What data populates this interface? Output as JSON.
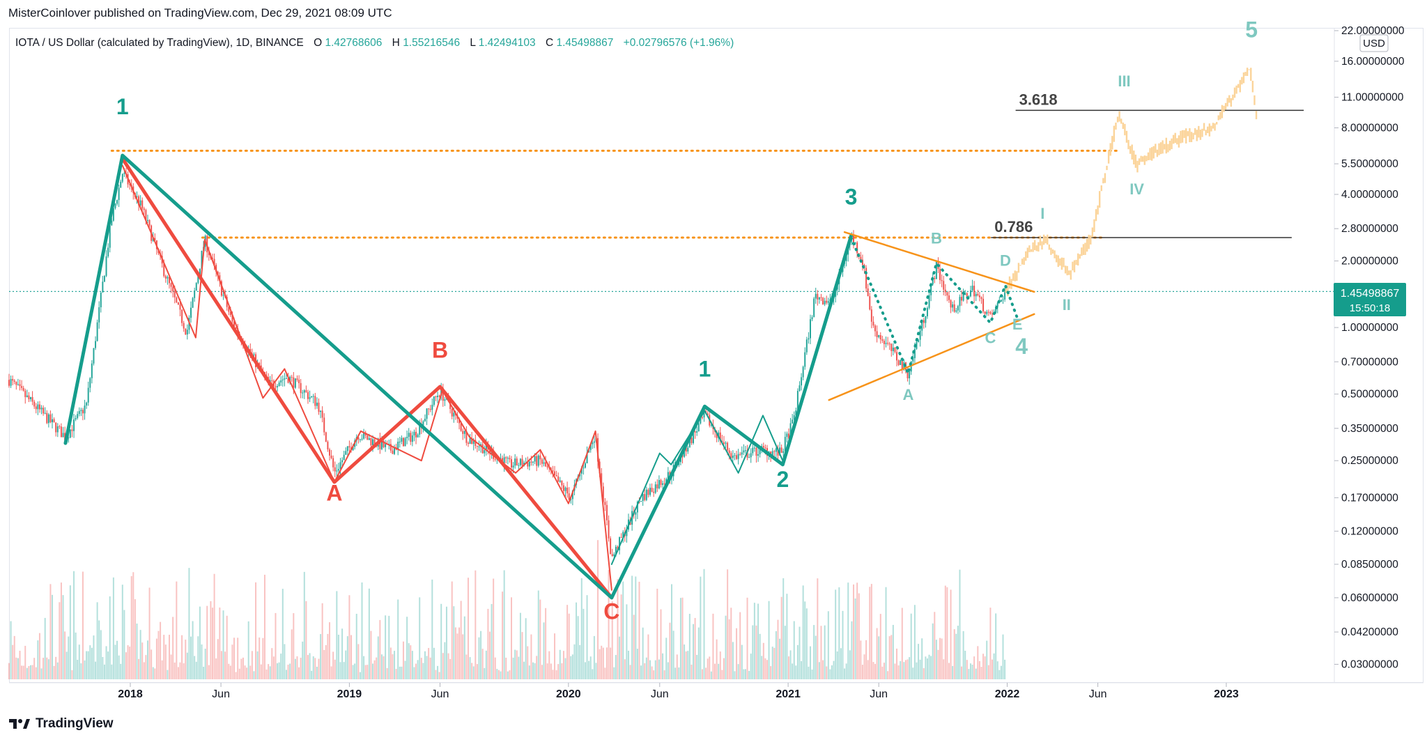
{
  "header": {
    "published_line": "MisterCoinlover published on TradingView.com, Dec 29, 2021 08:09 UTC"
  },
  "legend": {
    "symbol": "IOTA / US Dollar (calculated by TradingView), 1D, BINANCE",
    "o_label": "O",
    "o_value": "1.42768606",
    "h_label": "H",
    "h_value": "1.55216546",
    "l_label": "L",
    "l_value": "1.42494103",
    "c_label": "C",
    "c_value": "1.45498867",
    "change": "+0.02796576 (+1.96%)"
  },
  "price_axis": {
    "currency": "USD",
    "last_price": "1.45498867",
    "countdown": "15:50:18"
  },
  "footer": {
    "brand": "TradingView"
  },
  "colors": {
    "up": "#26a69a",
    "down": "#ef5350",
    "red_wave": "#ef4b3f",
    "green_wave": "#159d8c",
    "orange": "#f7931a",
    "projection": "#fbd49a",
    "label_teal": "#7fc8c0",
    "fib_line": "#333333"
  },
  "chart_data": {
    "type": "candlestick",
    "scale": "log",
    "ylim": [
      0.027,
      22
    ],
    "x_range": [
      "2017-06-13",
      "2023-06-30"
    ],
    "x_ticks": [
      {
        "date": "2018-01-01",
        "label": "2018",
        "bold": true
      },
      {
        "date": "2018-06-01",
        "label": "Jun",
        "bold": false
      },
      {
        "date": "2019-01-01",
        "label": "2019",
        "bold": true
      },
      {
        "date": "2019-06-01",
        "label": "Jun",
        "bold": false
      },
      {
        "date": "2020-01-01",
        "label": "2020",
        "bold": true
      },
      {
        "date": "2020-06-01",
        "label": "Jun",
        "bold": false
      },
      {
        "date": "2021-01-01",
        "label": "2021",
        "bold": true
      },
      {
        "date": "2021-06-01",
        "label": "Jun",
        "bold": false
      },
      {
        "date": "2022-01-01",
        "label": "2022",
        "bold": true
      },
      {
        "date": "2022-06-01",
        "label": "Jun",
        "bold": false
      },
      {
        "date": "2023-01-01",
        "label": "2023",
        "bold": true
      }
    ],
    "y_ticks": [
      {
        "value": 22,
        "label": "22.00000000"
      },
      {
        "value": 16,
        "label": "16.00000000"
      },
      {
        "value": 11,
        "label": "11.00000000"
      },
      {
        "value": 8,
        "label": "8.00000000"
      },
      {
        "value": 5.5,
        "label": "5.50000000"
      },
      {
        "value": 4,
        "label": "4.00000000"
      },
      {
        "value": 2.8,
        "label": "2.80000000"
      },
      {
        "value": 2,
        "label": "2.00000000"
      },
      {
        "value": 1,
        "label": "1.00000000"
      },
      {
        "value": 0.7,
        "label": "0.70000000"
      },
      {
        "value": 0.5,
        "label": "0.50000000"
      },
      {
        "value": 0.35,
        "label": "0.35000000"
      },
      {
        "value": 0.25,
        "label": "0.25000000"
      },
      {
        "value": 0.17,
        "label": "0.17000000"
      },
      {
        "value": 0.12,
        "label": "0.12000000"
      },
      {
        "value": 0.085,
        "label": "0.08500000"
      },
      {
        "value": 0.06,
        "label": "0.06000000"
      },
      {
        "value": 0.042,
        "label": "0.04200000"
      },
      {
        "value": 0.03,
        "label": "0.03000000"
      }
    ],
    "price_path": [
      {
        "date": "2017-06-13",
        "price": 0.58
      },
      {
        "date": "2017-09-15",
        "price": 0.32
      },
      {
        "date": "2017-10-20",
        "price": 0.45
      },
      {
        "date": "2017-11-30",
        "price": 3.0
      },
      {
        "date": "2017-12-19",
        "price": 5.0
      },
      {
        "date": "2018-01-20",
        "price": 3.5
      },
      {
        "date": "2018-02-20",
        "price": 2.0
      },
      {
        "date": "2018-04-05",
        "price": 0.95
      },
      {
        "date": "2018-05-05",
        "price": 2.5
      },
      {
        "date": "2018-06-20",
        "price": 1.05
      },
      {
        "date": "2018-08-20",
        "price": 0.55
      },
      {
        "date": "2018-09-20",
        "price": 0.6
      },
      {
        "date": "2018-11-10",
        "price": 0.45
      },
      {
        "date": "2018-12-07",
        "price": 0.22
      },
      {
        "date": "2019-01-15",
        "price": 0.33
      },
      {
        "date": "2019-03-10",
        "price": 0.28
      },
      {
        "date": "2019-04-20",
        "price": 0.33
      },
      {
        "date": "2019-06-01",
        "price": 0.52
      },
      {
        "date": "2019-07-15",
        "price": 0.32
      },
      {
        "date": "2019-09-25",
        "price": 0.24
      },
      {
        "date": "2019-11-15",
        "price": 0.25
      },
      {
        "date": "2020-01-05",
        "price": 0.17
      },
      {
        "date": "2020-02-14",
        "price": 0.33
      },
      {
        "date": "2020-03-13",
        "price": 0.09
      },
      {
        "date": "2020-05-01",
        "price": 0.17
      },
      {
        "date": "2020-06-20",
        "price": 0.22
      },
      {
        "date": "2020-08-15",
        "price": 0.4
      },
      {
        "date": "2020-10-01",
        "price": 0.26
      },
      {
        "date": "2020-11-20",
        "price": 0.28
      },
      {
        "date": "2020-12-20",
        "price": 0.27
      },
      {
        "date": "2021-01-10",
        "price": 0.38
      },
      {
        "date": "2021-02-15",
        "price": 1.4
      },
      {
        "date": "2021-03-15",
        "price": 1.3
      },
      {
        "date": "2021-04-16",
        "price": 2.6
      },
      {
        "date": "2021-05-05",
        "price": 2.0
      },
      {
        "date": "2021-05-22",
        "price": 1.0
      },
      {
        "date": "2021-06-20",
        "price": 0.8
      },
      {
        "date": "2021-07-20",
        "price": 0.62
      },
      {
        "date": "2021-08-15",
        "price": 1.1
      },
      {
        "date": "2021-09-05",
        "price": 1.9
      },
      {
        "date": "2021-10-01",
        "price": 1.2
      },
      {
        "date": "2021-11-05",
        "price": 1.5
      },
      {
        "date": "2021-12-04",
        "price": 1.1
      },
      {
        "date": "2021-12-29",
        "price": 1.455
      }
    ],
    "projection_path": [
      {
        "date": "2021-12-29",
        "price": 1.45
      },
      {
        "date": "2022-02-05",
        "price": 2.2
      },
      {
        "date": "2022-03-05",
        "price": 2.5
      },
      {
        "date": "2022-04-15",
        "price": 1.75
      },
      {
        "date": "2022-05-20",
        "price": 2.5
      },
      {
        "date": "2022-07-05",
        "price": 9.2
      },
      {
        "date": "2022-08-05",
        "price": 5.5
      },
      {
        "date": "2022-10-05",
        "price": 7.0
      },
      {
        "date": "2022-12-10",
        "price": 8.0
      },
      {
        "date": "2023-02-10",
        "price": 15.0
      },
      {
        "date": "2023-02-20",
        "price": 9.0
      }
    ],
    "red_wave": [
      {
        "date": "2017-12-19",
        "price": 5.8
      },
      {
        "date": "2018-12-07",
        "price": 0.2
      },
      {
        "date": "2019-06-01",
        "price": 0.54
      },
      {
        "date": "2020-03-13",
        "price": 0.06
      }
    ],
    "red_wave_thin": [
      {
        "date": "2017-12-19",
        "price": 5.4
      },
      {
        "date": "2018-04-20",
        "price": 0.9
      },
      {
        "date": "2018-05-05",
        "price": 2.5
      },
      {
        "date": "2018-08-10",
        "price": 0.48
      },
      {
        "date": "2018-09-15",
        "price": 0.65
      },
      {
        "date": "2018-12-07",
        "price": 0.2
      },
      {
        "date": "2019-01-20",
        "price": 0.34
      },
      {
        "date": "2019-05-01",
        "price": 0.25
      },
      {
        "date": "2019-06-05",
        "price": 0.52
      },
      {
        "date": "2019-07-20",
        "price": 0.32
      },
      {
        "date": "2019-10-05",
        "price": 0.22
      },
      {
        "date": "2019-11-15",
        "price": 0.28
      },
      {
        "date": "2020-01-01",
        "price": 0.16
      },
      {
        "date": "2020-02-15",
        "price": 0.34
      },
      {
        "date": "2020-03-13",
        "price": 0.065
      }
    ],
    "green_wave": [
      {
        "date": "2017-09-15",
        "price": 0.3
      },
      {
        "date": "2017-12-19",
        "price": 6.0
      },
      {
        "date": "2020-03-13",
        "price": 0.06
      },
      {
        "date": "2020-08-15",
        "price": 0.44
      },
      {
        "date": "2020-12-23",
        "price": 0.24
      },
      {
        "date": "2021-04-16",
        "price": 2.6
      }
    ],
    "green_wave_thin": [
      {
        "date": "2020-03-13",
        "price": 0.085
      },
      {
        "date": "2020-06-01",
        "price": 0.27
      },
      {
        "date": "2020-06-20",
        "price": 0.24
      },
      {
        "date": "2020-08-15",
        "price": 0.42
      },
      {
        "date": "2020-10-10",
        "price": 0.22
      },
      {
        "date": "2020-11-20",
        "price": 0.4
      },
      {
        "date": "2020-12-23",
        "price": 0.25
      }
    ],
    "triangle_upper": [
      {
        "date": "2021-04-05",
        "price": 2.7
      },
      {
        "date": "2022-02-15",
        "price": 1.45
      }
    ],
    "triangle_lower": [
      {
        "date": "2021-03-10",
        "price": 0.47
      },
      {
        "date": "2022-02-15",
        "price": 1.15
      }
    ],
    "triangle_dots": [
      {
        "date": "2021-04-16",
        "price": 2.55
      },
      {
        "date": "2021-07-20",
        "price": 0.62
      },
      {
        "date": "2021-09-05",
        "price": 1.95
      },
      {
        "date": "2021-12-04",
        "price": 1.05
      },
      {
        "date": "2021-12-29",
        "price": 1.55
      },
      {
        "date": "2022-01-18",
        "price": 1.1
      }
    ],
    "horizontal_levels": [
      {
        "price": 6.3,
        "from": "2017-12-01",
        "to": "2022-07-05",
        "style": "orange-dotted"
      },
      {
        "price": 2.55,
        "from": "2018-05-01",
        "to": "2022-06-10",
        "style": "orange-dotted"
      }
    ],
    "fib_levels": [
      {
        "label": "0.786",
        "price": 2.55,
        "from": "2021-12-05",
        "to": "2023-04-20"
      },
      {
        "label": "3.618",
        "price": 9.6,
        "from": "2022-01-15",
        "to": "2023-05-10"
      }
    ],
    "last_price_line": 1.455,
    "labels": [
      {
        "text": "1",
        "date": "2017-12-19",
        "price": 9.2,
        "color": "green",
        "size": "l"
      },
      {
        "text": "A",
        "date": "2018-12-07",
        "price": 0.165,
        "color": "red",
        "size": "l"
      },
      {
        "text": "B",
        "date": "2019-06-01",
        "price": 0.73,
        "color": "red",
        "size": "l"
      },
      {
        "text": "C",
        "date": "2020-03-13",
        "price": 0.048,
        "color": "red",
        "size": "l"
      },
      {
        "text": "1",
        "date": "2020-08-15",
        "price": 0.6,
        "color": "green",
        "size": "l"
      },
      {
        "text": "2",
        "date": "2020-12-23",
        "price": 0.19,
        "color": "green",
        "size": "l"
      },
      {
        "text": "3",
        "date": "2021-04-16",
        "price": 3.6,
        "color": "green",
        "size": "l"
      },
      {
        "text": "A",
        "date": "2021-07-20",
        "price": 0.47,
        "color": "teal",
        "size": "s"
      },
      {
        "text": "B",
        "date": "2021-09-05",
        "price": 2.4,
        "color": "teal",
        "size": "s"
      },
      {
        "text": "C",
        "date": "2021-12-04",
        "price": 0.85,
        "color": "teal",
        "size": "s"
      },
      {
        "text": "D",
        "date": "2021-12-29",
        "price": 1.9,
        "color": "teal",
        "size": "s"
      },
      {
        "text": "E",
        "date": "2022-01-18",
        "price": 0.98,
        "color": "teal",
        "size": "s"
      },
      {
        "text": "4",
        "date": "2022-01-25",
        "price": 0.76,
        "color": "teal",
        "size": "l"
      },
      {
        "text": "I",
        "date": "2022-03-01",
        "price": 3.1,
        "color": "teal",
        "size": "s"
      },
      {
        "text": "II",
        "date": "2022-04-10",
        "price": 1.2,
        "color": "teal",
        "size": "s"
      },
      {
        "text": "III",
        "date": "2022-07-15",
        "price": 12.3,
        "color": "teal",
        "size": "s"
      },
      {
        "text": "IV",
        "date": "2022-08-05",
        "price": 4.0,
        "color": "teal",
        "size": "s"
      },
      {
        "text": "5",
        "date": "2023-02-12",
        "price": 20.5,
        "color": "teal",
        "size": "l"
      }
    ]
  }
}
